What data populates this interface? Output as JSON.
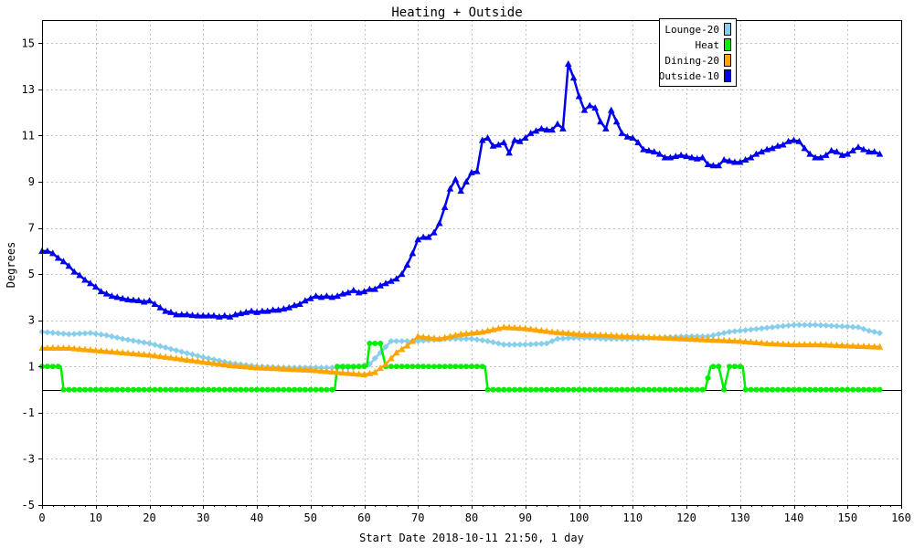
{
  "chart_data": {
    "type": "line",
    "title": "Heating + Outside",
    "xlabel": "Start Date 2018-10-11 21:50, 1 day",
    "ylabel": "Degrees",
    "xlim": [
      0,
      160
    ],
    "ylim": [
      -5,
      16
    ],
    "xticks": [
      0,
      10,
      20,
      30,
      40,
      50,
      60,
      70,
      80,
      90,
      100,
      110,
      120,
      130,
      140,
      150,
      160
    ],
    "yticks": [
      -5,
      -3,
      -1,
      1,
      3,
      5,
      7,
      9,
      11,
      13,
      15
    ],
    "grid": true,
    "legend_position": "top-right",
    "zero_line": true,
    "series": [
      {
        "name": "Lounge-20",
        "color": "#87ceeb",
        "marker": "diamond",
        "points": [
          [
            0,
            2.5
          ],
          [
            5,
            2.4
          ],
          [
            9,
            2.45
          ],
          [
            12,
            2.35
          ],
          [
            15,
            2.2
          ],
          [
            20,
            2.0
          ],
          [
            25,
            1.7
          ],
          [
            30,
            1.4
          ],
          [
            35,
            1.15
          ],
          [
            40,
            1.0
          ],
          [
            45,
            0.95
          ],
          [
            50,
            0.95
          ],
          [
            55,
            0.95
          ],
          [
            58,
            0.95
          ],
          [
            61,
            1.1
          ],
          [
            63,
            1.6
          ],
          [
            65,
            2.1
          ],
          [
            68,
            2.1
          ],
          [
            70,
            2.1
          ],
          [
            75,
            2.2
          ],
          [
            80,
            2.2
          ],
          [
            83,
            2.1
          ],
          [
            86,
            1.95
          ],
          [
            90,
            1.95
          ],
          [
            94,
            2.0
          ],
          [
            96,
            2.2
          ],
          [
            100,
            2.25
          ],
          [
            105,
            2.2
          ],
          [
            110,
            2.2
          ],
          [
            115,
            2.25
          ],
          [
            120,
            2.3
          ],
          [
            124,
            2.3
          ],
          [
            128,
            2.5
          ],
          [
            132,
            2.6
          ],
          [
            136,
            2.7
          ],
          [
            140,
            2.8
          ],
          [
            144,
            2.8
          ],
          [
            148,
            2.75
          ],
          [
            152,
            2.7
          ],
          [
            154,
            2.55
          ],
          [
            156,
            2.45
          ]
        ]
      },
      {
        "name": "Heat",
        "color": "#00ee00",
        "marker": "circle",
        "points": [
          [
            0,
            1
          ],
          [
            3.5,
            1
          ],
          [
            4,
            0
          ],
          [
            54.5,
            0
          ],
          [
            55,
            1
          ],
          [
            60.5,
            1
          ],
          [
            61,
            2
          ],
          [
            63,
            2
          ],
          [
            64,
            1
          ],
          [
            82.5,
            1
          ],
          [
            83,
            0
          ],
          [
            123.5,
            0
          ],
          [
            124.5,
            1
          ],
          [
            126,
            1
          ],
          [
            127,
            0
          ],
          [
            128,
            1
          ],
          [
            130.5,
            1
          ],
          [
            131,
            0
          ],
          [
            156,
            0
          ]
        ]
      },
      {
        "name": "Dining-20",
        "color": "#ffa500",
        "marker": "triangle",
        "points": [
          [
            0,
            1.8
          ],
          [
            5,
            1.8
          ],
          [
            10,
            1.7
          ],
          [
            15,
            1.6
          ],
          [
            20,
            1.5
          ],
          [
            25,
            1.35
          ],
          [
            30,
            1.2
          ],
          [
            35,
            1.05
          ],
          [
            40,
            0.95
          ],
          [
            45,
            0.9
          ],
          [
            50,
            0.85
          ],
          [
            55,
            0.75
          ],
          [
            60,
            0.65
          ],
          [
            62,
            0.75
          ],
          [
            64,
            1.1
          ],
          [
            66,
            1.6
          ],
          [
            68,
            1.9
          ],
          [
            70,
            2.3
          ],
          [
            74,
            2.2
          ],
          [
            78,
            2.4
          ],
          [
            82,
            2.5
          ],
          [
            86,
            2.7
          ],
          [
            90,
            2.65
          ],
          [
            95,
            2.5
          ],
          [
            100,
            2.4
          ],
          [
            110,
            2.3
          ],
          [
            120,
            2.2
          ],
          [
            125,
            2.15
          ],
          [
            130,
            2.1
          ],
          [
            135,
            2.0
          ],
          [
            140,
            1.95
          ],
          [
            145,
            1.95
          ],
          [
            150,
            1.9
          ],
          [
            156,
            1.85
          ]
        ]
      },
      {
        "name": "Outside-10",
        "color": "#0000ee",
        "marker": "triangle",
        "points": [
          [
            0,
            6.0
          ],
          [
            1,
            6.0
          ],
          [
            2,
            5.9
          ],
          [
            3,
            5.7
          ],
          [
            4,
            5.55
          ],
          [
            5,
            5.35
          ],
          [
            6,
            5.1
          ],
          [
            7,
            4.95
          ],
          [
            8,
            4.75
          ],
          [
            9,
            4.6
          ],
          [
            10,
            4.45
          ],
          [
            11,
            4.25
          ],
          [
            12,
            4.15
          ],
          [
            13,
            4.05
          ],
          [
            14,
            4.0
          ],
          [
            15,
            3.95
          ],
          [
            16,
            3.9
          ],
          [
            17,
            3.88
          ],
          [
            18,
            3.86
          ],
          [
            19,
            3.8
          ],
          [
            20,
            3.85
          ],
          [
            21,
            3.7
          ],
          [
            22,
            3.55
          ],
          [
            23,
            3.4
          ],
          [
            24,
            3.35
          ],
          [
            25,
            3.25
          ],
          [
            26,
            3.25
          ],
          [
            27,
            3.25
          ],
          [
            28,
            3.22
          ],
          [
            29,
            3.2
          ],
          [
            30,
            3.2
          ],
          [
            31,
            3.2
          ],
          [
            32,
            3.2
          ],
          [
            33,
            3.15
          ],
          [
            34,
            3.2
          ],
          [
            35,
            3.15
          ],
          [
            36,
            3.25
          ],
          [
            37,
            3.3
          ],
          [
            38,
            3.35
          ],
          [
            39,
            3.4
          ],
          [
            40,
            3.35
          ],
          [
            41,
            3.4
          ],
          [
            42,
            3.4
          ],
          [
            43,
            3.45
          ],
          [
            44,
            3.45
          ],
          [
            45,
            3.5
          ],
          [
            46,
            3.55
          ],
          [
            47,
            3.65
          ],
          [
            48,
            3.7
          ],
          [
            49,
            3.85
          ],
          [
            50,
            3.95
          ],
          [
            51,
            4.05
          ],
          [
            52,
            4.0
          ],
          [
            53,
            4.05
          ],
          [
            54,
            4.0
          ],
          [
            55,
            4.05
          ],
          [
            56,
            4.15
          ],
          [
            57,
            4.2
          ],
          [
            58,
            4.3
          ],
          [
            59,
            4.2
          ],
          [
            60,
            4.25
          ],
          [
            61,
            4.35
          ],
          [
            62,
            4.35
          ],
          [
            63,
            4.5
          ],
          [
            64,
            4.6
          ],
          [
            65,
            4.7
          ],
          [
            66,
            4.8
          ],
          [
            67,
            5.0
          ],
          [
            68,
            5.4
          ],
          [
            69,
            5.9
          ],
          [
            70,
            6.5
          ],
          [
            71,
            6.6
          ],
          [
            72,
            6.6
          ],
          [
            73,
            6.8
          ],
          [
            74,
            7.2
          ],
          [
            75,
            7.9
          ],
          [
            76,
            8.7
          ],
          [
            77,
            9.1
          ],
          [
            78,
            8.6
          ],
          [
            79,
            9.0
          ],
          [
            80,
            9.4
          ],
          [
            81,
            9.45
          ],
          [
            82,
            10.8
          ],
          [
            83,
            10.9
          ],
          [
            84,
            10.55
          ],
          [
            85,
            10.6
          ],
          [
            86,
            10.7
          ],
          [
            87,
            10.25
          ],
          [
            88,
            10.8
          ],
          [
            89,
            10.75
          ],
          [
            90,
            10.9
          ],
          [
            91,
            11.1
          ],
          [
            92,
            11.2
          ],
          [
            93,
            11.3
          ],
          [
            94,
            11.25
          ],
          [
            95,
            11.25
          ],
          [
            96,
            11.5
          ],
          [
            97,
            11.3
          ],
          [
            98,
            14.1
          ],
          [
            99,
            13.5
          ],
          [
            100,
            12.7
          ],
          [
            101,
            12.1
          ],
          [
            102,
            12.3
          ],
          [
            103,
            12.2
          ],
          [
            104,
            11.6
          ],
          [
            105,
            11.3
          ],
          [
            106,
            12.1
          ],
          [
            107,
            11.6
          ],
          [
            108,
            11.1
          ],
          [
            109,
            10.95
          ],
          [
            110,
            10.9
          ],
          [
            111,
            10.7
          ],
          [
            112,
            10.4
          ],
          [
            113,
            10.35
          ],
          [
            114,
            10.3
          ],
          [
            115,
            10.2
          ],
          [
            116,
            10.05
          ],
          [
            117,
            10.05
          ],
          [
            118,
            10.1
          ],
          [
            119,
            10.15
          ],
          [
            120,
            10.1
          ],
          [
            121,
            10.05
          ],
          [
            122,
            10.0
          ],
          [
            123,
            10.05
          ],
          [
            124,
            9.75
          ],
          [
            125,
            9.7
          ],
          [
            126,
            9.7
          ],
          [
            127,
            9.95
          ],
          [
            128,
            9.9
          ],
          [
            129,
            9.85
          ],
          [
            130,
            9.85
          ],
          [
            131,
            9.95
          ],
          [
            132,
            10.05
          ],
          [
            133,
            10.2
          ],
          [
            134,
            10.3
          ],
          [
            135,
            10.4
          ],
          [
            136,
            10.45
          ],
          [
            137,
            10.55
          ],
          [
            138,
            10.6
          ],
          [
            139,
            10.75
          ],
          [
            140,
            10.8
          ],
          [
            141,
            10.75
          ],
          [
            142,
            10.45
          ],
          [
            143,
            10.2
          ],
          [
            144,
            10.05
          ],
          [
            145,
            10.05
          ],
          [
            146,
            10.15
          ],
          [
            147,
            10.35
          ],
          [
            148,
            10.3
          ],
          [
            149,
            10.15
          ],
          [
            150,
            10.2
          ],
          [
            151,
            10.35
          ],
          [
            152,
            10.5
          ],
          [
            153,
            10.4
          ],
          [
            154,
            10.3
          ],
          [
            155,
            10.3
          ],
          [
            156,
            10.2
          ]
        ]
      }
    ]
  }
}
